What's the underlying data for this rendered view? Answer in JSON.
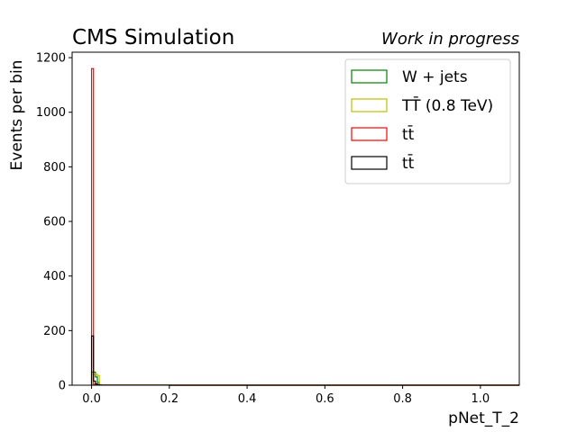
{
  "header": {
    "left_title": "CMS Simulation",
    "right_title": "Work in progress"
  },
  "chart_data": {
    "type": "histogram",
    "xlabel": "pNet_T_2",
    "ylabel": "Events per bin",
    "xlim": [
      -0.05,
      1.1
    ],
    "ylim": [
      0,
      1220
    ],
    "x_ticks": [
      "0.0",
      "0.2",
      "0.4",
      "0.6",
      "0.8",
      "1.0"
    ],
    "y_ticks": [
      "0",
      "200",
      "400",
      "600",
      "800",
      "1000",
      "1200"
    ],
    "legend_position": "top-right",
    "bin_edges": [
      0.0,
      0.005,
      0.01,
      0.015,
      0.02,
      0.025,
      0.2,
      1.1
    ],
    "series": [
      {
        "name": "W + jets",
        "color": "#008000",
        "values": [
          48,
          48,
          30,
          10,
          1,
          0.5,
          0
        ]
      },
      {
        "name": "TT̄ (0.8 TeV)",
        "color": "#bfbf00",
        "values": [
          40,
          40,
          40,
          35,
          2,
          0.5,
          0
        ]
      },
      {
        "name": "tt̄",
        "color": "#ff0000",
        "values": [
          1160,
          2,
          1,
          0.5,
          0.3,
          0.2,
          0
        ]
      },
      {
        "name": "tt̄",
        "color": "#000000",
        "values": [
          180,
          15,
          5,
          2,
          0.5,
          0.2,
          0
        ]
      }
    ]
  }
}
